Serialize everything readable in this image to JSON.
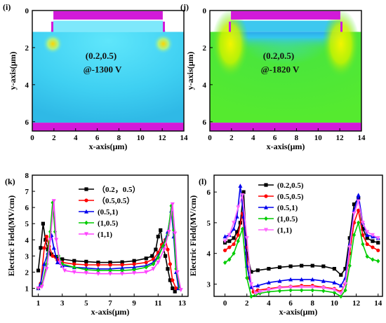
{
  "colors": {
    "contact": "#d21ad9",
    "panel_i_field": "#4fd8f4",
    "panel_j_field": "#4be63b",
    "oxide": "#ffffff"
  },
  "maps": [
    {
      "label": "(i)",
      "annotation_line1": "(0.2,0.5)",
      "annotation_line2": "@-1300 V",
      "xlabel": "x-axis(μm)",
      "ylabel": "y-axis(μm)",
      "xticks": [
        "0",
        "2",
        "4",
        "6",
        "8",
        "10",
        "12",
        "14"
      ],
      "yticks": [
        "0",
        "2",
        "4",
        "6"
      ]
    },
    {
      "label": "(j)",
      "annotation_line1": "(0.2,0.5)",
      "annotation_line2": "@-1820 V",
      "xlabel": "x-axis(μm)",
      "ylabel": "y-axis(μm)",
      "xticks": [
        "0",
        "2",
        "4",
        "6",
        "8",
        "10",
        "12",
        "14"
      ],
      "yticks": [
        "0",
        "2",
        "4",
        "6"
      ]
    }
  ],
  "chart_data": [
    {
      "type": "line",
      "panel": "(k)",
      "xlabel": "x-axis(μm)",
      "ylabel": "Electric Field(MV/cm)",
      "xlim": [
        0.5,
        13.5
      ],
      "ylim": [
        0.5,
        8
      ],
      "xticks": [
        "1",
        "3",
        "5",
        "7",
        "9",
        "11",
        "13"
      ],
      "yticks": [
        "1",
        "2",
        "3",
        "4",
        "5",
        "6",
        "7",
        "8"
      ],
      "grid": false,
      "legend": "top-center",
      "series": [
        {
          "name": "（0.2，0.5）",
          "color": "#000000",
          "marker": "square",
          "x": [
            1.0,
            1.2,
            1.4,
            1.6,
            1.8,
            2.1,
            2.5,
            3.0,
            4.0,
            5.0,
            6.0,
            7.0,
            8.0,
            9.0,
            10.0,
            10.5,
            10.8,
            11.0,
            11.2,
            11.4,
            11.6,
            11.8,
            12.0,
            12.2,
            12.4
          ],
          "y": [
            2.1,
            3.5,
            5.0,
            4.0,
            3.4,
            3.1,
            2.95,
            2.8,
            2.7,
            2.65,
            2.6,
            2.6,
            2.62,
            2.7,
            2.85,
            3.0,
            3.4,
            4.2,
            4.6,
            3.6,
            3.0,
            2.2,
            1.5,
            1.0,
            0.8
          ]
        },
        {
          "name": "（0.5,0.5）",
          "color": "#ff0000",
          "marker": "circle",
          "x": [
            1.0,
            1.2,
            1.5,
            1.7,
            1.9,
            2.2,
            2.6,
            3.0,
            4.0,
            5.0,
            6.0,
            7.0,
            8.0,
            9.0,
            10.0,
            10.6,
            11.0,
            11.3,
            11.6,
            11.8,
            12.0,
            12.2,
            12.5
          ],
          "y": [
            1.0,
            1.3,
            3.5,
            4.2,
            3.6,
            3.0,
            2.75,
            2.6,
            2.5,
            2.45,
            2.45,
            2.45,
            2.45,
            2.5,
            2.6,
            2.8,
            3.2,
            3.7,
            4.0,
            3.4,
            2.5,
            1.5,
            1.0
          ]
        },
        {
          "name": "(0.5,1)",
          "color": "#0000ee",
          "marker": "triangle-up",
          "x": [
            1.0,
            1.2,
            1.5,
            1.8,
            2.1,
            2.3,
            2.6,
            3.0,
            4.0,
            5.0,
            6.0,
            7.0,
            8.0,
            9.0,
            10.0,
            10.6,
            11.0,
            11.4,
            11.8,
            12.1,
            12.3,
            12.5,
            12.7
          ],
          "y": [
            1.0,
            1.3,
            2.5,
            3.2,
            4.3,
            3.5,
            2.6,
            2.4,
            2.3,
            2.25,
            2.2,
            2.2,
            2.25,
            2.3,
            2.4,
            2.6,
            3.0,
            3.6,
            4.5,
            5.8,
            4.2,
            2.0,
            1.0
          ]
        },
        {
          "name": "(1,0.5)",
          "color": "#00cc00",
          "marker": "diamond",
          "x": [
            1.0,
            1.3,
            1.7,
            2.0,
            2.2,
            2.4,
            2.7,
            3.0,
            4.0,
            5.0,
            6.0,
            7.0,
            8.0,
            9.0,
            10.0,
            10.6,
            11.0,
            11.4,
            11.8,
            12.1,
            12.3,
            12.5,
            12.8
          ],
          "y": [
            1.0,
            1.2,
            2.5,
            4.5,
            6.3,
            4.5,
            3.0,
            2.5,
            2.3,
            2.15,
            2.1,
            2.1,
            2.1,
            2.15,
            2.3,
            2.5,
            2.9,
            3.6,
            4.3,
            6.1,
            4.6,
            2.2,
            1.0
          ]
        },
        {
          "name": "(1,1)",
          "color": "#ff44ff",
          "marker": "triangle-down",
          "x": [
            1.0,
            1.3,
            1.7,
            2.0,
            2.3,
            2.5,
            2.8,
            3.2,
            4.0,
            5.0,
            6.0,
            7.0,
            8.0,
            9.0,
            10.0,
            10.6,
            11.0,
            11.5,
            11.9,
            12.2,
            12.4,
            12.6,
            12.9
          ],
          "y": [
            1.0,
            1.1,
            2.2,
            4.0,
            6.4,
            4.0,
            2.6,
            2.1,
            2.0,
            1.95,
            1.9,
            1.9,
            1.9,
            1.95,
            2.0,
            2.2,
            2.6,
            3.4,
            4.5,
            6.2,
            4.4,
            2.0,
            0.9
          ]
        }
      ]
    },
    {
      "type": "line",
      "panel": "(l)",
      "xlabel": "x-axis(μm)",
      "ylabel": "Electric Field(MV/cm)",
      "xlim": [
        -1,
        14.4
      ],
      "ylim": [
        2.6,
        6.55
      ],
      "xticks": [
        "0",
        "2",
        "4",
        "6",
        "8",
        "10",
        "12",
        "14"
      ],
      "yticks": [
        "3",
        "4",
        "5",
        "6"
      ],
      "grid": false,
      "legend": "top-center",
      "series": [
        {
          "name": "(0.2,0.5)",
          "color": "#000000",
          "marker": "square",
          "x": [
            0.0,
            0.4,
            0.8,
            1.1,
            1.4,
            1.7,
            2.0,
            2.4,
            3.0,
            4.0,
            5.0,
            6.0,
            7.0,
            8.0,
            9.0,
            10.0,
            10.6,
            11.0,
            11.4,
            11.8,
            12.2,
            12.6,
            13.0,
            13.5,
            14.0
          ],
          "y": [
            4.35,
            4.4,
            4.5,
            4.7,
            5.0,
            6.0,
            4.0,
            3.4,
            3.45,
            3.5,
            3.55,
            3.58,
            3.6,
            3.6,
            3.58,
            3.5,
            3.3,
            3.5,
            4.5,
            5.6,
            5.8,
            4.8,
            4.5,
            4.4,
            4.35
          ]
        },
        {
          "name": "(0.5,0.5)",
          "color": "#ff0000",
          "marker": "circle",
          "x": [
            0.0,
            0.4,
            0.8,
            1.2,
            1.6,
            1.9,
            2.2,
            2.6,
            3.0,
            4.0,
            5.0,
            6.0,
            7.0,
            8.0,
            9.0,
            10.0,
            10.6,
            11.0,
            11.4,
            11.8,
            12.2,
            12.6,
            13.0,
            13.5,
            14.0
          ],
          "y": [
            4.1,
            4.2,
            4.3,
            4.6,
            5.3,
            4.2,
            3.2,
            2.75,
            2.8,
            2.85,
            2.9,
            2.92,
            2.95,
            2.95,
            2.9,
            2.85,
            2.75,
            3.0,
            4.0,
            5.0,
            5.4,
            4.6,
            4.3,
            4.2,
            4.1
          ]
        },
        {
          "name": "(0.5,1)",
          "color": "#0000ee",
          "marker": "triangle-up",
          "x": [
            0.0,
            0.4,
            0.8,
            1.1,
            1.4,
            1.7,
            2.0,
            2.4,
            3.0,
            4.0,
            5.0,
            6.0,
            7.0,
            8.0,
            9.0,
            10.0,
            10.6,
            11.0,
            11.4,
            11.8,
            12.2,
            12.6,
            13.0,
            13.5,
            14.0
          ],
          "y": [
            4.55,
            4.6,
            4.8,
            5.2,
            6.2,
            5.2,
            3.6,
            2.9,
            2.95,
            3.05,
            3.1,
            3.15,
            3.15,
            3.15,
            3.1,
            3.05,
            2.95,
            3.2,
            4.3,
            5.4,
            5.9,
            5.0,
            4.6,
            4.55,
            4.5
          ]
        },
        {
          "name": "(1,0.5)",
          "color": "#00cc00",
          "marker": "diamond",
          "x": [
            0.0,
            0.4,
            0.8,
            1.2,
            1.6,
            2.0,
            2.4,
            2.8,
            3.2,
            4.0,
            5.0,
            6.0,
            7.0,
            8.0,
            9.0,
            10.0,
            10.6,
            11.0,
            11.4,
            11.8,
            12.2,
            12.6,
            13.0,
            13.5,
            14.0
          ],
          "y": [
            3.7,
            3.8,
            4.0,
            4.4,
            4.8,
            3.2,
            2.6,
            2.65,
            2.7,
            2.75,
            2.78,
            2.8,
            2.8,
            2.8,
            2.78,
            2.72,
            2.6,
            2.8,
            3.6,
            4.6,
            5.0,
            4.3,
            3.9,
            3.8,
            3.75
          ]
        },
        {
          "name": "(1,1)",
          "color": "#ff66ff",
          "marker": "triangle-down",
          "x": [
            0.0,
            0.4,
            0.8,
            1.2,
            1.6,
            2.0,
            2.4,
            2.8,
            3.2,
            4.0,
            5.0,
            6.0,
            7.0,
            8.0,
            9.0,
            10.0,
            10.6,
            11.0,
            11.4,
            11.8,
            12.2,
            12.6,
            13.0,
            13.5,
            14.0
          ],
          "y": [
            4.4,
            4.6,
            5.0,
            5.5,
            5.9,
            4.5,
            3.0,
            2.7,
            2.75,
            2.82,
            2.88,
            2.9,
            2.9,
            2.9,
            2.88,
            2.82,
            2.7,
            3.0,
            4.2,
            5.3,
            5.7,
            5.0,
            4.7,
            4.6,
            4.5
          ]
        }
      ]
    }
  ]
}
